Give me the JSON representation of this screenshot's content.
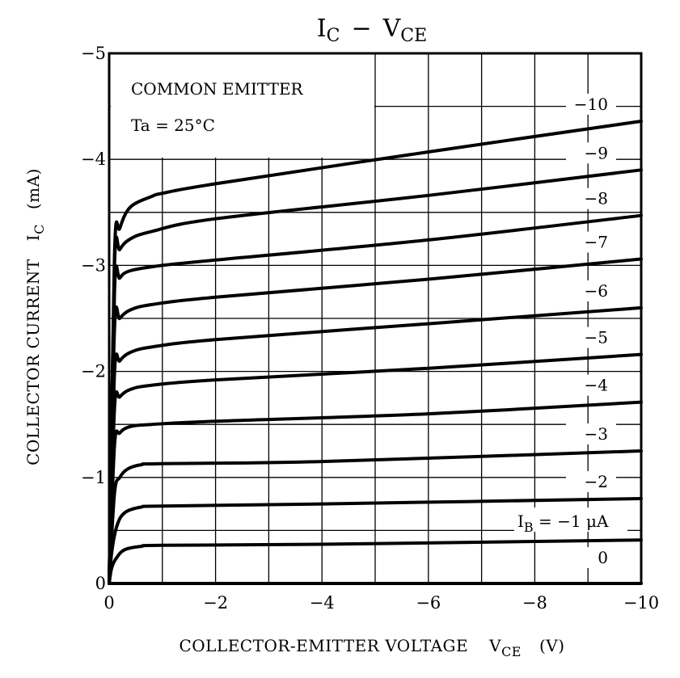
{
  "chart_data": {
    "type": "line",
    "title": "IC − VCE",
    "title_parts": {
      "main1": "I",
      "sub1": "C",
      "dash": "−",
      "main2": "V",
      "sub2": "CE"
    },
    "xlabel": {
      "text": "COLLECTOR-EMITTER VOLTAGE",
      "symbol": "V",
      "symbol_sub": "CE",
      "unit": "(V)"
    },
    "ylabel": {
      "text": "COLLECTOR CURRENT",
      "symbol": "I",
      "symbol_sub": "C",
      "unit": "(mA)"
    },
    "xlim": [
      0,
      -10
    ],
    "ylim": [
      0,
      -5
    ],
    "x_ticks": [
      {
        "value": 0,
        "label": "0"
      },
      {
        "value": -2,
        "label": "−2"
      },
      {
        "value": -4,
        "label": "−4"
      },
      {
        "value": -6,
        "label": "−6"
      },
      {
        "value": -8,
        "label": "−8"
      },
      {
        "value": -10,
        "label": "−10"
      }
    ],
    "y_ticks": [
      {
        "value": 0,
        "label": "0"
      },
      {
        "value": -1,
        "label": "−1"
      },
      {
        "value": -2,
        "label": "−2"
      },
      {
        "value": -3,
        "label": "−3"
      },
      {
        "value": -4,
        "label": "−4"
      },
      {
        "value": -5,
        "label": "−5"
      }
    ],
    "grid": true,
    "annotations": {
      "line1": "COMMON EMITTER",
      "line2": "Ta = 25°C"
    },
    "series_param": {
      "symbol": "I",
      "sub": "B",
      "eq": " = −1 μA"
    },
    "series": [
      {
        "label": "0",
        "points": [
          [
            0,
            0
          ],
          [
            -10,
            0
          ]
        ]
      },
      {
        "label": "",
        "points": [
          [
            0,
            0
          ],
          [
            -0.05,
            -0.15
          ],
          [
            -0.15,
            -0.25
          ],
          [
            -0.3,
            -0.32
          ],
          [
            -0.6,
            -0.35
          ],
          [
            -1,
            -0.36
          ],
          [
            -4,
            -0.37
          ],
          [
            -10,
            -0.41
          ]
        ]
      },
      {
        "label": "−2",
        "points": [
          [
            0,
            0
          ],
          [
            -0.05,
            -0.3
          ],
          [
            -0.15,
            -0.55
          ],
          [
            -0.3,
            -0.67
          ],
          [
            -0.6,
            -0.72
          ],
          [
            -1,
            -0.73
          ],
          [
            -4,
            -0.75
          ],
          [
            -10,
            -0.8
          ]
        ]
      },
      {
        "label": "−3",
        "points": [
          [
            0,
            0
          ],
          [
            -0.1,
            -0.85
          ],
          [
            -0.2,
            -1.0
          ],
          [
            -0.35,
            -1.08
          ],
          [
            -0.6,
            -1.12
          ],
          [
            -1,
            -1.13
          ],
          [
            -4,
            -1.15
          ],
          [
            -10,
            -1.25
          ]
        ]
      },
      {
        "label": "−4",
        "points": [
          [
            0,
            0
          ],
          [
            -0.1,
            -1.3
          ],
          [
            -0.2,
            -1.42
          ],
          [
            -0.4,
            -1.48
          ],
          [
            -0.8,
            -1.5
          ],
          [
            -2,
            -1.53
          ],
          [
            -6,
            -1.6
          ],
          [
            -10,
            -1.71
          ]
        ]
      },
      {
        "label": "−5",
        "points": [
          [
            0,
            0
          ],
          [
            -0.1,
            -1.65
          ],
          [
            -0.2,
            -1.76
          ],
          [
            -0.4,
            -1.83
          ],
          [
            -0.8,
            -1.87
          ],
          [
            -2,
            -1.92
          ],
          [
            -6,
            -2.03
          ],
          [
            -10,
            -2.16
          ]
        ]
      },
      {
        "label": "−6",
        "points": [
          [
            0,
            0
          ],
          [
            -0.1,
            -1.98
          ],
          [
            -0.2,
            -2.1
          ],
          [
            -0.4,
            -2.18
          ],
          [
            -0.8,
            -2.23
          ],
          [
            -2,
            -2.3
          ],
          [
            -6,
            -2.45
          ],
          [
            -10,
            -2.6
          ]
        ]
      },
      {
        "label": "−7",
        "points": [
          [
            0,
            0
          ],
          [
            -0.1,
            -2.4
          ],
          [
            -0.2,
            -2.5
          ],
          [
            -0.4,
            -2.58
          ],
          [
            -0.8,
            -2.63
          ],
          [
            -2,
            -2.7
          ],
          [
            -6,
            -2.87
          ],
          [
            -10,
            -3.06
          ]
        ]
      },
      {
        "label": "−8",
        "points": [
          [
            0,
            0
          ],
          [
            -0.1,
            -2.75
          ],
          [
            -0.2,
            -2.88
          ],
          [
            -0.4,
            -2.95
          ],
          [
            -1,
            -3.0
          ],
          [
            -2,
            -3.05
          ],
          [
            -6,
            -3.24
          ],
          [
            -10,
            -3.47
          ]
        ]
      },
      {
        "label": "−9",
        "points": [
          [
            0,
            0
          ],
          [
            -0.1,
            -3.0
          ],
          [
            -0.2,
            -3.15
          ],
          [
            -0.4,
            -3.25
          ],
          [
            -0.8,
            -3.32
          ],
          [
            -2,
            -3.44
          ],
          [
            -6,
            -3.66
          ],
          [
            -10,
            -3.9
          ]
        ]
      },
      {
        "label": "−10",
        "points": [
          [
            0,
            0
          ],
          [
            -0.1,
            -3.1
          ],
          [
            -0.2,
            -3.35
          ],
          [
            -0.4,
            -3.55
          ],
          [
            -0.8,
            -3.65
          ],
          [
            -1,
            -3.68
          ],
          [
            -2,
            -3.77
          ],
          [
            -6,
            -4.07
          ],
          [
            -10,
            -4.36
          ]
        ]
      }
    ]
  }
}
